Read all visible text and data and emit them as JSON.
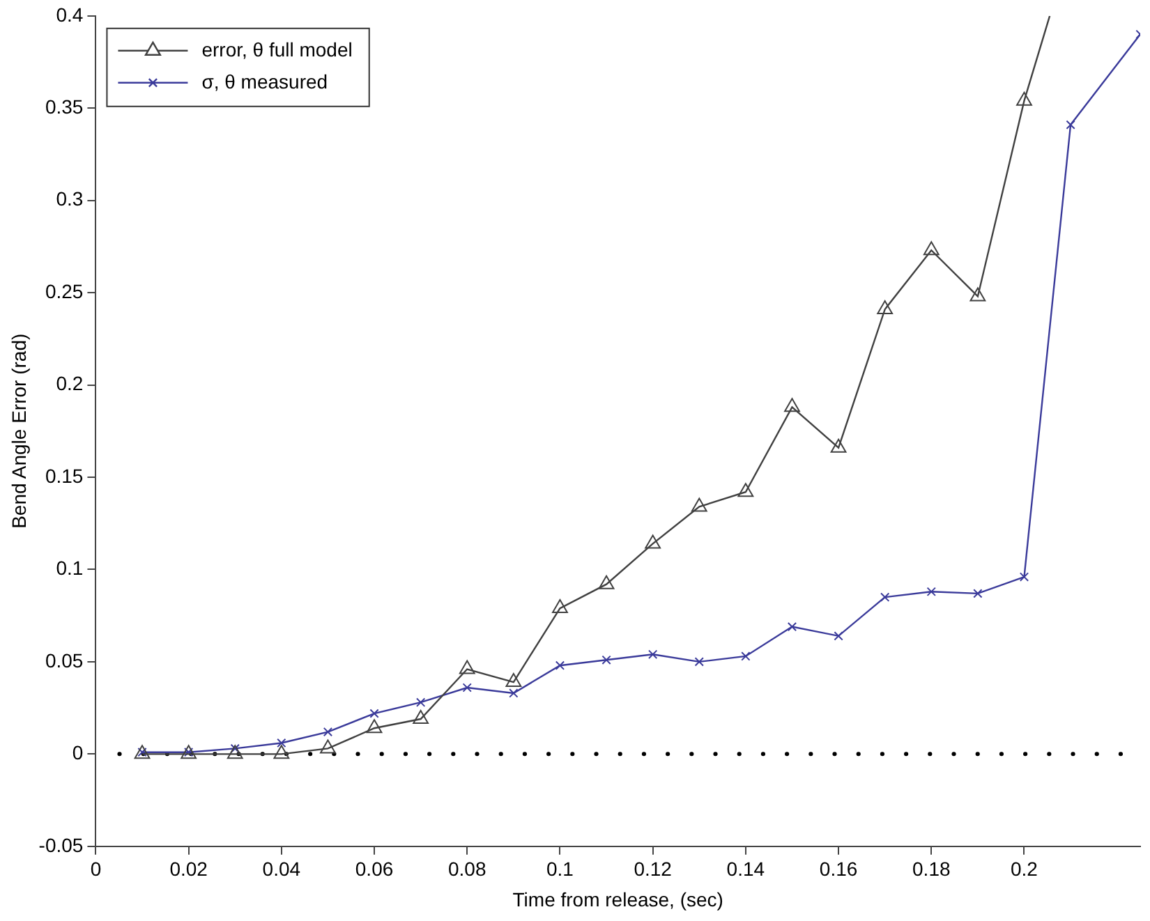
{
  "chart_data": {
    "type": "line",
    "xlabel": "Time from release, (sec)",
    "ylabel": "Bend Angle Error (rad)",
    "xlim": [
      0,
      0.225
    ],
    "xticks": [
      0,
      0.02,
      0.04,
      0.06,
      0.08,
      0.1,
      0.12,
      0.14,
      0.16,
      0.18,
      0.2
    ],
    "ylim": [
      -0.05,
      0.4
    ],
    "yticks": [
      -0.05,
      0,
      0.05,
      0.1,
      0.15,
      0.2,
      0.25,
      0.3,
      0.35,
      0.4
    ],
    "grid": false,
    "legend": "top left",
    "line_style": "solid",
    "series": [
      {
        "name": "error, θ full model",
        "color": "#404040",
        "marker": "triangle",
        "x": [
          0.01,
          0.02,
          0.03,
          0.04,
          0.05,
          0.06,
          0.07,
          0.08,
          0.09,
          0.1,
          0.11,
          0.12,
          0.13,
          0.14,
          0.15,
          0.16,
          0.17,
          0.18,
          0.19,
          0.2,
          0.2055
        ],
        "values": [
          0,
          0,
          0,
          0,
          0.003,
          0.014,
          0.019,
          0.046,
          0.039,
          0.079,
          0.092,
          0.114,
          0.134,
          0.142,
          0.188,
          0.166,
          0.241,
          0.273,
          0.248,
          0.354,
          0.4
        ]
      },
      {
        "name": "σ, θ measured",
        "color": "#3a3a9a",
        "marker": "cross",
        "x": [
          0.01,
          0.02,
          0.03,
          0.04,
          0.05,
          0.06,
          0.07,
          0.08,
          0.09,
          0.1,
          0.11,
          0.12,
          0.13,
          0.14,
          0.15,
          0.16,
          0.17,
          0.18,
          0.19,
          0.2,
          0.21,
          0.225
        ],
        "values": [
          0.001,
          0.001,
          0.003,
          0.006,
          0.012,
          0.022,
          0.028,
          0.036,
          0.033,
          0.048,
          0.051,
          0.054,
          0.05,
          0.053,
          0.069,
          0.064,
          0.085,
          0.088,
          0.087,
          0.096,
          0.341,
          0.39
        ]
      }
    ],
    "ref_lines": [
      {
        "axis": "y",
        "value": 0,
        "color": "#000000",
        "line_style": "dotted"
      }
    ]
  }
}
